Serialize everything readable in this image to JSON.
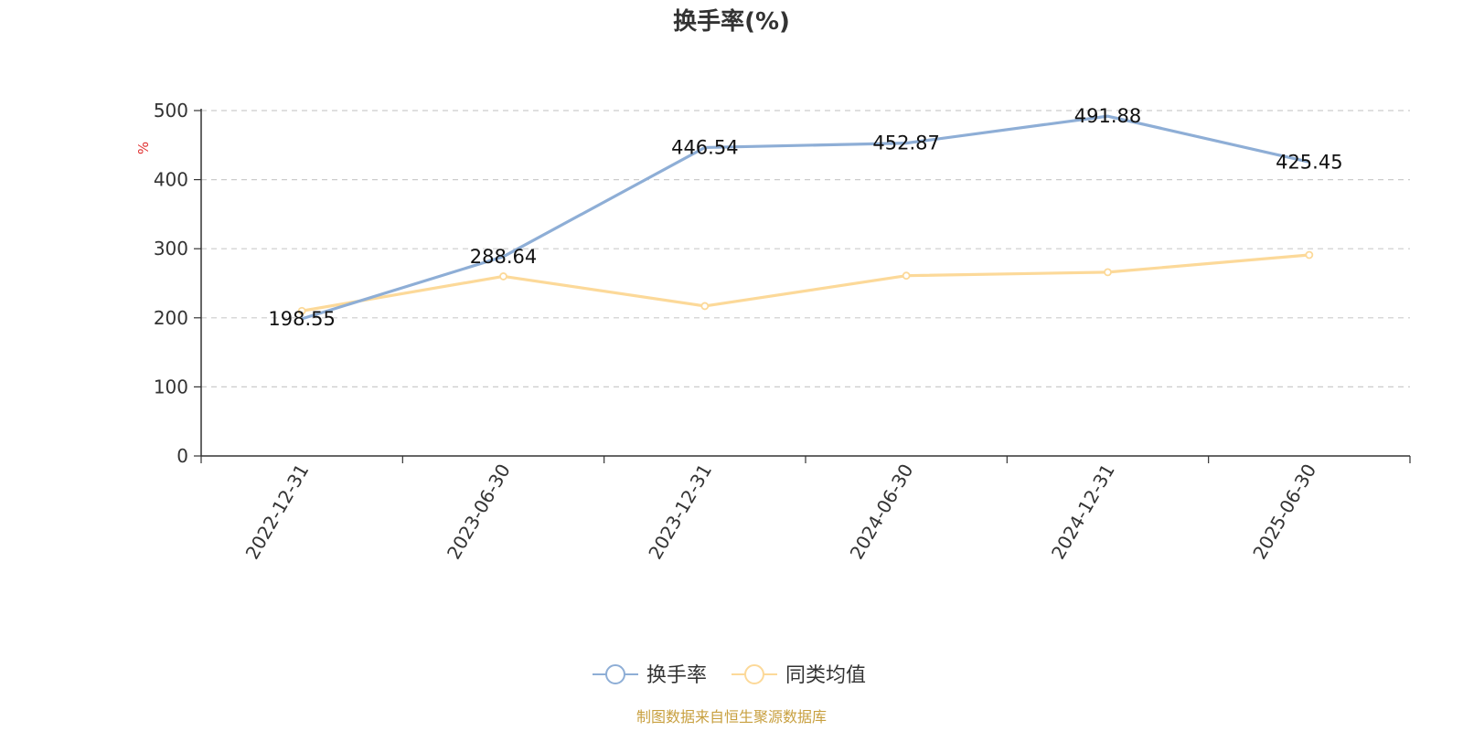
{
  "chart_data": {
    "type": "line",
    "title": "换手率(%)",
    "ylabel": "%",
    "xlabel": "",
    "categories": [
      "2022-12-31",
      "2023-06-30",
      "2023-12-31",
      "2024-06-30",
      "2024-12-31",
      "2025-06-30"
    ],
    "ylim": [
      0,
      500
    ],
    "yticks": [
      0,
      100,
      200,
      300,
      400,
      500
    ],
    "grid": true,
    "legend_position": "bottom-center",
    "series": [
      {
        "name": "换手率",
        "values": [
          198.55,
          288.64,
          446.54,
          452.87,
          491.88,
          425.45
        ],
        "labels": [
          "198.55",
          "288.64",
          "446.54",
          "452.87",
          "491.88",
          "425.45"
        ],
        "color": "#8eaed6"
      },
      {
        "name": "同类均值",
        "values": [
          210,
          260,
          217,
          261,
          266,
          291
        ],
        "color": "#fcd999"
      }
    ],
    "source": "制图数据来自恒生聚源数据库"
  }
}
